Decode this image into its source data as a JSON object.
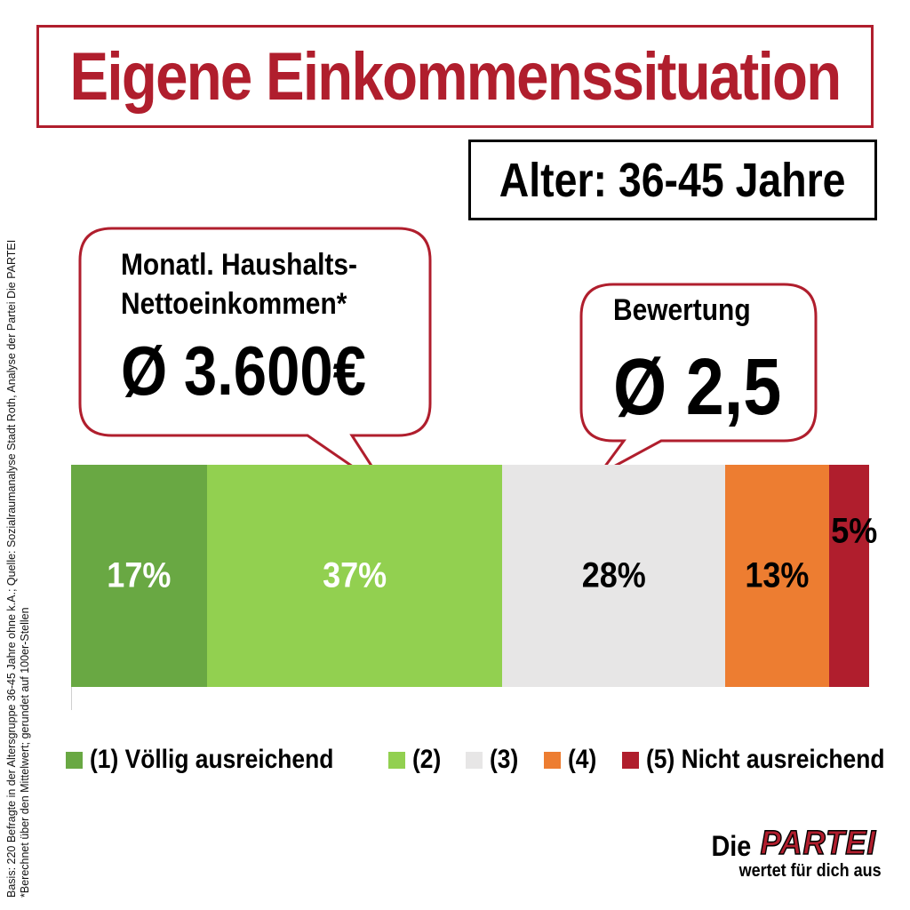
{
  "title": "Eigene Einkommenssituation",
  "subtitle": "Alter: 36-45 Jahre",
  "bubble_income": {
    "label_line1": "Monatl. Haushalts-",
    "label_line2": "Nettoeinkommen*",
    "value": "Ø 3.600€"
  },
  "bubble_rating": {
    "label": "Bewertung",
    "value": "Ø 2,5"
  },
  "side_note": {
    "line1": "Basis: 220 Befragte in der Altersgruppe  36-45 Jahre ohne k.A.; Quelle: Sozialraumanalyse  Stadt Roth, Analyse der Partei Die PARTEI",
    "line2": "*Berechnet über den Mittelwert; gerundet auf 100er-Stellen"
  },
  "logo": {
    "die": "Die",
    "partei": "PARTEI",
    "slogan": "wertet für dich aus"
  },
  "chart_data": {
    "type": "bar",
    "orientation": "horizontal-stacked",
    "categories": [
      "(1) Völlig ausreichend",
      "(2)",
      "(3)",
      "(4)",
      "(5) Nicht ausreichend"
    ],
    "values": [
      17,
      37,
      28,
      13,
      5
    ],
    "value_labels": [
      "17%",
      "37%",
      "28%",
      "13%",
      "5%"
    ],
    "colors": [
      "#69a843",
      "#92d050",
      "#e7e6e6",
      "#ed7d31",
      "#b01e2d"
    ],
    "label_colors": [
      "#ffffff",
      "#ffffff",
      "#000000",
      "#000000",
      "#000000"
    ],
    "legend_position": "bottom"
  },
  "colors": {
    "accent": "#b01e2d"
  }
}
